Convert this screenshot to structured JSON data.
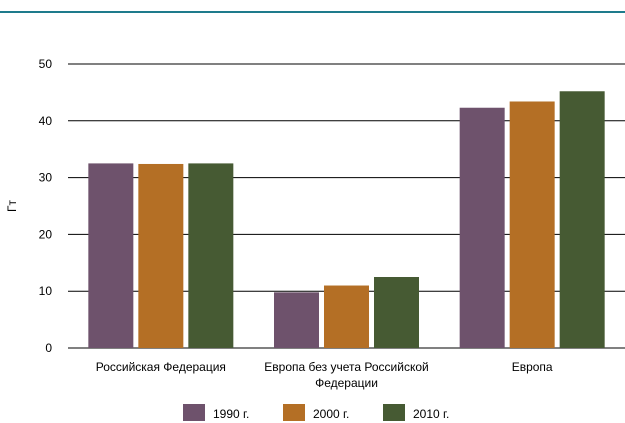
{
  "colors": {
    "rule": "#1e7b8c",
    "grid": "#000000"
  },
  "chart_data": {
    "type": "bar",
    "title": "",
    "xlabel": "",
    "ylabel": "Гт",
    "ylim": [
      0,
      50
    ],
    "yticks": [
      0,
      10,
      20,
      30,
      40,
      50
    ],
    "grid": true,
    "legend_position": "bottom",
    "categories": [
      [
        "Российская Федерация"
      ],
      [
        "Европа без учета Российской",
        "Федерации"
      ],
      [
        "Европа"
      ]
    ],
    "series": [
      {
        "name": "1990 г.",
        "color": "#6e526c",
        "values": [
          32.5,
          9.8,
          42.3
        ]
      },
      {
        "name": "2000 г.",
        "color": "#b46f25",
        "values": [
          32.4,
          11.0,
          43.4
        ]
      },
      {
        "name": "2010 г.",
        "color": "#465a33",
        "values": [
          32.5,
          12.5,
          45.2
        ]
      }
    ]
  }
}
